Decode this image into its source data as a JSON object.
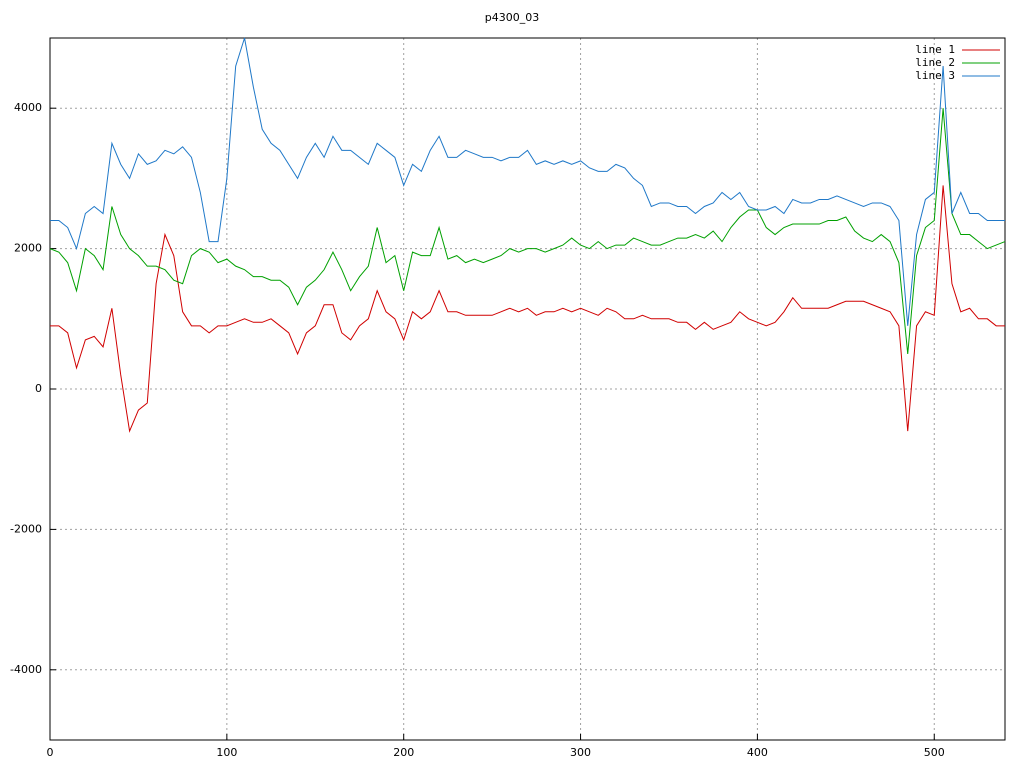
{
  "chart_data": {
    "type": "line",
    "title": "p4300_03",
    "x": [
      0,
      5,
      10,
      15,
      20,
      25,
      30,
      35,
      40,
      45,
      50,
      55,
      60,
      65,
      70,
      75,
      80,
      85,
      90,
      95,
      100,
      105,
      110,
      115,
      120,
      125,
      130,
      135,
      140,
      145,
      150,
      155,
      160,
      165,
      170,
      175,
      180,
      185,
      190,
      195,
      200,
      205,
      210,
      215,
      220,
      225,
      230,
      235,
      240,
      245,
      250,
      255,
      260,
      265,
      270,
      275,
      280,
      285,
      290,
      295,
      300,
      305,
      310,
      315,
      320,
      325,
      330,
      335,
      340,
      345,
      350,
      355,
      360,
      365,
      370,
      375,
      380,
      385,
      390,
      395,
      400,
      405,
      410,
      415,
      420,
      425,
      430,
      435,
      440,
      445,
      450,
      455,
      460,
      465,
      470,
      475,
      480,
      485,
      490,
      495,
      500,
      505,
      510,
      515,
      520,
      525,
      530,
      535,
      540
    ],
    "series": [
      {
        "name": "line 1",
        "color": "#d00000",
        "values": [
          900,
          900,
          800,
          300,
          700,
          750,
          600,
          1150,
          200,
          -600,
          -300,
          -200,
          1500,
          2200,
          1900,
          1100,
          900,
          900,
          800,
          900,
          900,
          950,
          1000,
          950,
          950,
          1000,
          900,
          800,
          500,
          800,
          900,
          1200,
          1200,
          800,
          700,
          900,
          1000,
          1400,
          1100,
          1000,
          700,
          1100,
          1000,
          1100,
          1400,
          1100,
          1100,
          1050,
          1050,
          1050,
          1050,
          1100,
          1150,
          1100,
          1150,
          1050,
          1100,
          1100,
          1150,
          1100,
          1150,
          1100,
          1050,
          1150,
          1100,
          1000,
          1000,
          1050,
          1000,
          1000,
          1000,
          950,
          950,
          850,
          950,
          850,
          900,
          950,
          1100,
          1000,
          950,
          900,
          950,
          1100,
          1300,
          1150,
          1150,
          1150,
          1150,
          1200,
          1250,
          1250,
          1250,
          1200,
          1150,
          1100,
          900,
          -600,
          900,
          1100,
          1050,
          2900,
          1500,
          1100,
          1150,
          1000,
          1000,
          900,
          900
        ]
      },
      {
        "name": "line 2",
        "color": "#00a000",
        "values": [
          2000,
          1950,
          1800,
          1400,
          2000,
          1900,
          1700,
          2600,
          2200,
          2000,
          1900,
          1750,
          1750,
          1700,
          1550,
          1500,
          1900,
          2000,
          1950,
          1800,
          1850,
          1750,
          1700,
          1600,
          1600,
          1550,
          1550,
          1450,
          1200,
          1450,
          1550,
          1700,
          1950,
          1700,
          1400,
          1600,
          1750,
          2300,
          1800,
          1900,
          1400,
          1950,
          1900,
          1900,
          2300,
          1850,
          1900,
          1800,
          1850,
          1800,
          1850,
          1900,
          2000,
          1950,
          2000,
          2000,
          1950,
          2000,
          2050,
          2150,
          2050,
          2000,
          2100,
          2000,
          2050,
          2050,
          2150,
          2100,
          2050,
          2050,
          2100,
          2150,
          2150,
          2200,
          2150,
          2250,
          2100,
          2300,
          2450,
          2550,
          2550,
          2300,
          2200,
          2300,
          2350,
          2350,
          2350,
          2350,
          2400,
          2400,
          2450,
          2250,
          2150,
          2100,
          2200,
          2100,
          1800,
          500,
          1900,
          2300,
          2400,
          4000,
          2500,
          2200,
          2200,
          2100,
          2000,
          2050,
          2100
        ]
      },
      {
        "name": "line 3",
        "color": "#1f78c8",
        "values": [
          2400,
          2400,
          2300,
          2000,
          2500,
          2600,
          2500,
          3500,
          3200,
          3000,
          3350,
          3200,
          3250,
          3400,
          3350,
          3450,
          3300,
          2800,
          2100,
          2100,
          3000,
          4600,
          5000,
          4300,
          3700,
          3500,
          3400,
          3200,
          3000,
          3300,
          3500,
          3300,
          3600,
          3400,
          3400,
          3300,
          3200,
          3500,
          3400,
          3300,
          2900,
          3200,
          3100,
          3400,
          3600,
          3300,
          3300,
          3400,
          3350,
          3300,
          3300,
          3250,
          3300,
          3300,
          3400,
          3200,
          3250,
          3200,
          3250,
          3200,
          3250,
          3150,
          3100,
          3100,
          3200,
          3150,
          3000,
          2900,
          2600,
          2650,
          2650,
          2600,
          2600,
          2500,
          2600,
          2650,
          2800,
          2700,
          2800,
          2600,
          2550,
          2550,
          2600,
          2500,
          2700,
          2650,
          2650,
          2700,
          2700,
          2750,
          2700,
          2650,
          2600,
          2650,
          2650,
          2600,
          2400,
          900,
          2200,
          2700,
          2800,
          4600,
          2500,
          2800,
          2500,
          2500,
          2400,
          2400,
          2400
        ]
      }
    ],
    "xlim": [
      0,
      540
    ],
    "ylim": [
      -5000,
      5000
    ],
    "xticks": [
      0,
      100,
      200,
      300,
      400,
      500
    ],
    "yticks": [
      -4000,
      -2000,
      0,
      2000,
      4000
    ],
    "grid": true,
    "legend": "top-right"
  }
}
